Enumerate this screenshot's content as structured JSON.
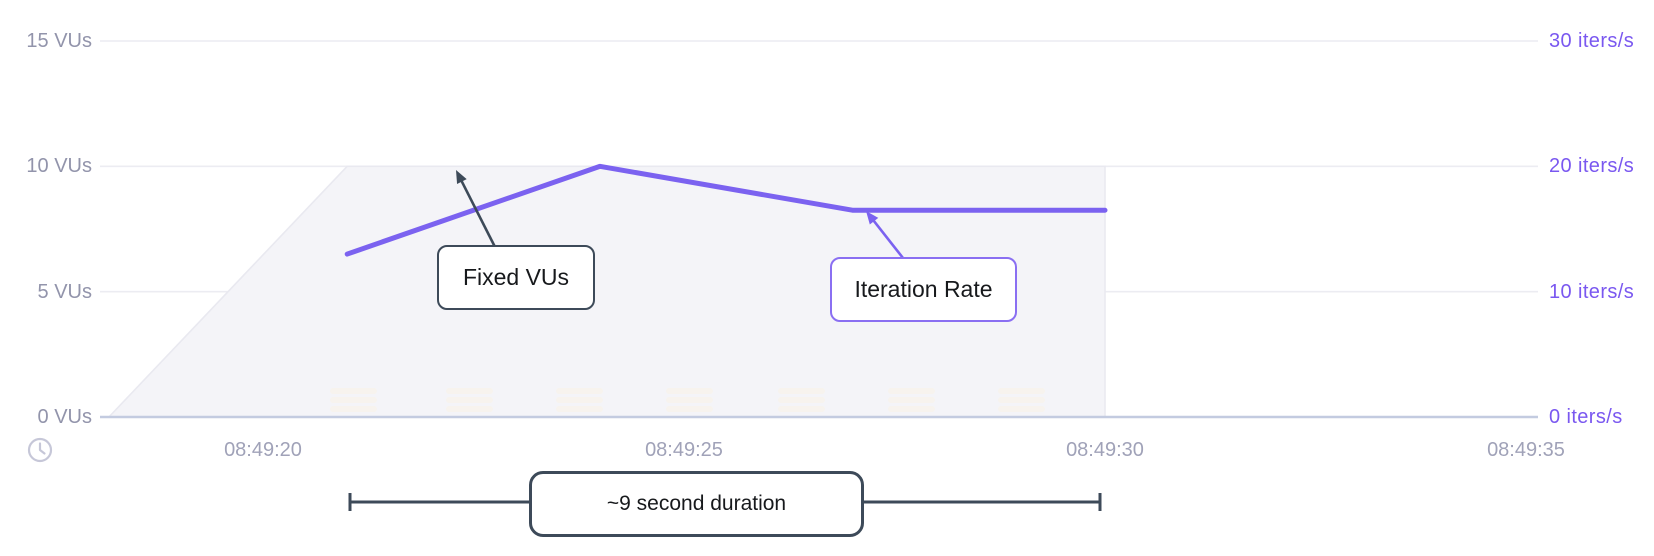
{
  "chart": {
    "left_axis": {
      "unit": "VUs",
      "ticks": [
        {
          "value": 0,
          "label": "0 VUs"
        },
        {
          "value": 5,
          "label": "5 VUs"
        },
        {
          "value": 10,
          "label": "10 VUs"
        },
        {
          "value": 15,
          "label": "15 VUs"
        }
      ]
    },
    "right_axis": {
      "unit": "iters/s",
      "ticks": [
        {
          "value": 0,
          "label": "0 iters/s"
        },
        {
          "value": 10,
          "label": "10 iters/s"
        },
        {
          "value": 20,
          "label": "20 iters/s"
        },
        {
          "value": 30,
          "label": "30 iters/s"
        }
      ]
    },
    "x_axis": {
      "ticks": [
        {
          "t": 0,
          "label": "08:49:20"
        },
        {
          "t": 5,
          "label": "08:49:25"
        },
        {
          "t": 10,
          "label": "08:49:30"
        },
        {
          "t": 15,
          "label": "08:49:35"
        }
      ]
    }
  },
  "chart_data": {
    "type": "line",
    "title": "",
    "xlabel": "time",
    "ylabel_left": "VUs",
    "ylabel_right": "iters/s",
    "ylim_left": [
      0,
      15
    ],
    "ylim_right": [
      0,
      30
    ],
    "x_tick_labels": [
      "08:49:20",
      "08:49:25",
      "08:49:30",
      "08:49:35"
    ],
    "grid": true,
    "legend": "annotated callouts instead of legend",
    "series": [
      {
        "name": "Fixed VUs",
        "style": "area",
        "axis": "left",
        "unit": "VUs",
        "x_times": [
          "08:49:18.2",
          "08:49:21",
          "08:49:30",
          "08:49:30"
        ],
        "t_seconds_after_084920": [
          -1.83,
          1,
          10,
          10
        ],
        "values": [
          0,
          10,
          10,
          0
        ]
      },
      {
        "name": "Iteration Rate",
        "style": "line",
        "axis": "right",
        "unit": "iters/s",
        "x_times": [
          "08:49:21",
          "08:49:24",
          "08:49:27",
          "08:49:30"
        ],
        "t_seconds_after_084920": [
          1,
          4,
          7,
          10
        ],
        "values": [
          13,
          20,
          16.5,
          16.5
        ]
      }
    ]
  },
  "annotations": {
    "fixed_vus": "Fixed VUs",
    "iteration_rate": "Iteration Rate",
    "duration": "~9 second duration"
  },
  "icons": {
    "clock": "clock-icon"
  },
  "colors": {
    "purple_line": "#7b62f0",
    "purple_label": "#7a58f0",
    "purple_border": "#8a6ff2",
    "label_gray": "#9294ab",
    "time_gray": "#a0a2b8",
    "area_fill": "#f4f4f8",
    "area_edge": "#e9e9f0",
    "gridline": "#ececf2",
    "axis_line": "#c3cbe0",
    "dark_slate": "#3d4a59",
    "mark_faint": "#f7f3ee"
  }
}
